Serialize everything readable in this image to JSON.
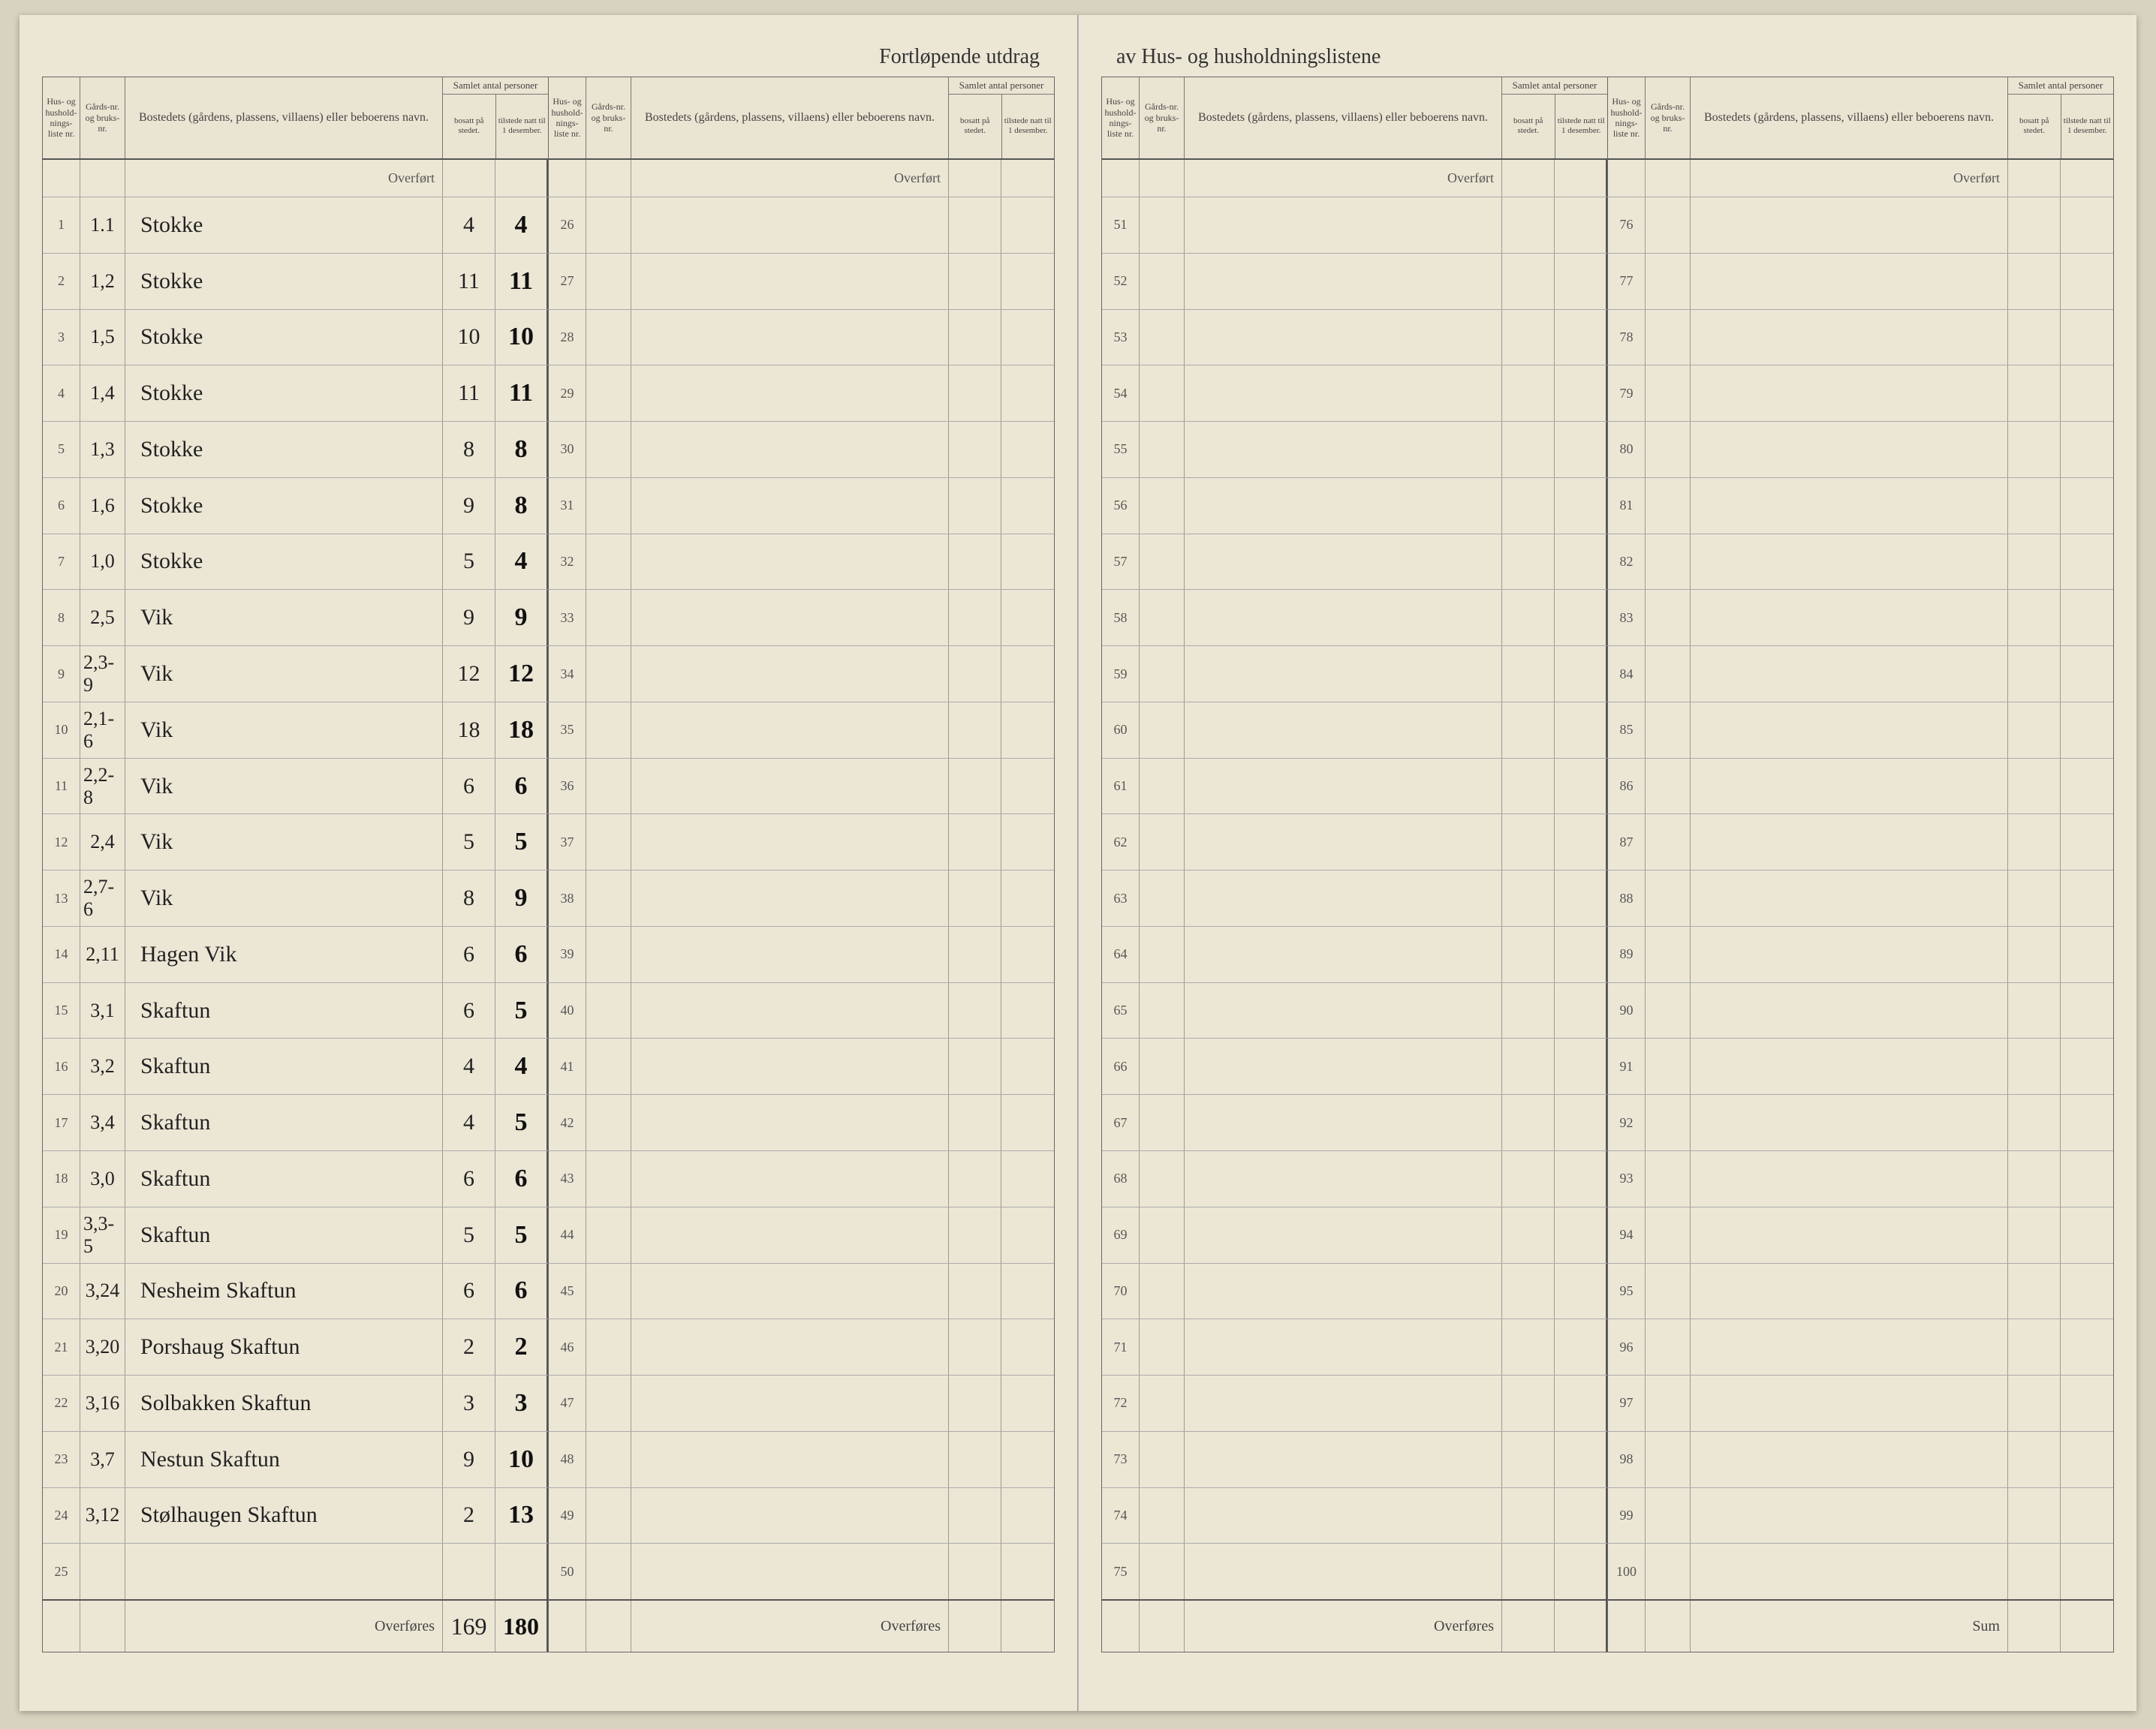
{
  "title_left": "Fortløpende utdrag",
  "title_right": "av Hus- og husholdningslistene",
  "headers": {
    "nr": "Hus- og hushold-nings-liste nr.",
    "gards": "Gårds-nr. og bruks-nr.",
    "bosted": "Bostedets (gårdens, plassens, villaens) eller beboerens navn.",
    "samlet": "Samlet antal personer",
    "bosatt": "bosatt på stedet.",
    "tilstede": "tilstede natt til 1 desember."
  },
  "labels": {
    "overfort": "Overført",
    "overfores": "Overføres",
    "sum": "Sum"
  },
  "panels": [
    {
      "overfort_label": "Overført",
      "rows": [
        {
          "nr": "1",
          "gards": "1.1",
          "bosted": "Stokke",
          "bosatt": "4",
          "tilstede": "4"
        },
        {
          "nr": "2",
          "gards": "1,2",
          "bosted": "Stokke",
          "bosatt": "11",
          "tilstede": "11"
        },
        {
          "nr": "3",
          "gards": "1,5",
          "bosted": "Stokke",
          "bosatt": "10",
          "tilstede": "10"
        },
        {
          "nr": "4",
          "gards": "1,4",
          "bosted": "Stokke",
          "bosatt": "11",
          "tilstede": "11"
        },
        {
          "nr": "5",
          "gards": "1,3",
          "bosted": "Stokke",
          "bosatt": "8",
          "tilstede": "8"
        },
        {
          "nr": "6",
          "gards": "1,6",
          "bosted": "Stokke",
          "bosatt": "9",
          "tilstede": "8"
        },
        {
          "nr": "7",
          "gards": "1,0",
          "bosted": "Stokke",
          "bosatt": "5",
          "tilstede": "4"
        },
        {
          "nr": "8",
          "gards": "2,5",
          "bosted": "Vik",
          "bosatt": "9",
          "tilstede": "9"
        },
        {
          "nr": "9",
          "gards": "2,3-9",
          "bosted": "Vik",
          "bosatt": "12",
          "tilstede": "12"
        },
        {
          "nr": "10",
          "gards": "2,1-6",
          "bosted": "Vik",
          "bosatt": "18",
          "tilstede": "18"
        },
        {
          "nr": "11",
          "gards": "2,2-8",
          "bosted": "Vik",
          "bosatt": "6",
          "tilstede": "6"
        },
        {
          "nr": "12",
          "gards": "2,4",
          "bosted": "Vik",
          "bosatt": "5",
          "tilstede": "5"
        },
        {
          "nr": "13",
          "gards": "2,7-6",
          "bosted": "Vik",
          "bosatt": "8",
          "tilstede": "9"
        },
        {
          "nr": "14",
          "gards": "2,11",
          "bosted": "Hagen Vik",
          "bosatt": "6",
          "tilstede": "6"
        },
        {
          "nr": "15",
          "gards": "3,1",
          "bosted": "Skaftun",
          "bosatt": "6",
          "tilstede": "5"
        },
        {
          "nr": "16",
          "gards": "3,2",
          "bosted": "Skaftun",
          "bosatt": "4",
          "tilstede": "4"
        },
        {
          "nr": "17",
          "gards": "3,4",
          "bosted": "Skaftun",
          "bosatt": "4",
          "tilstede": "5"
        },
        {
          "nr": "18",
          "gards": "3,0",
          "bosted": "Skaftun",
          "bosatt": "6",
          "tilstede": "6"
        },
        {
          "nr": "19",
          "gards": "3,3-5",
          "bosted": "Skaftun",
          "bosatt": "5",
          "tilstede": "5"
        },
        {
          "nr": "20",
          "gards": "3,24",
          "bosted": "Nesheim Skaftun",
          "bosatt": "6",
          "tilstede": "6"
        },
        {
          "nr": "21",
          "gards": "3,20",
          "bosted": "Porshaug Skaftun",
          "bosatt": "2",
          "tilstede": "2"
        },
        {
          "nr": "22",
          "gards": "3,16",
          "bosted": "Solbakken Skaftun",
          "bosatt": "3",
          "tilstede": "3"
        },
        {
          "nr": "23",
          "gards": "3,7",
          "bosted": "Nestun Skaftun",
          "bosatt": "9",
          "tilstede": "10"
        },
        {
          "nr": "24",
          "gards": "3,12",
          "bosted": "Stølhaugen Skaftun",
          "bosatt": "2",
          "tilstede": "13"
        },
        {
          "nr": "25",
          "gards": "",
          "bosted": "",
          "bosatt": "",
          "tilstede": ""
        }
      ],
      "footer_label": "Overføres",
      "footer_bosatt": "169",
      "footer_tilstede": "180"
    },
    {
      "rows": [
        {
          "nr": "26"
        },
        {
          "nr": "27"
        },
        {
          "nr": "28"
        },
        {
          "nr": "29"
        },
        {
          "nr": "30"
        },
        {
          "nr": "31"
        },
        {
          "nr": "32"
        },
        {
          "nr": "33"
        },
        {
          "nr": "34"
        },
        {
          "nr": "35"
        },
        {
          "nr": "36"
        },
        {
          "nr": "37"
        },
        {
          "nr": "38"
        },
        {
          "nr": "39"
        },
        {
          "nr": "40"
        },
        {
          "nr": "41"
        },
        {
          "nr": "42"
        },
        {
          "nr": "43"
        },
        {
          "nr": "44"
        },
        {
          "nr": "45"
        },
        {
          "nr": "46"
        },
        {
          "nr": "47"
        },
        {
          "nr": "48"
        },
        {
          "nr": "49"
        },
        {
          "nr": "50"
        }
      ],
      "footer_label": "Overføres"
    },
    {
      "rows": [
        {
          "nr": "51"
        },
        {
          "nr": "52"
        },
        {
          "nr": "53"
        },
        {
          "nr": "54"
        },
        {
          "nr": "55"
        },
        {
          "nr": "56"
        },
        {
          "nr": "57"
        },
        {
          "nr": "58"
        },
        {
          "nr": "59"
        },
        {
          "nr": "60"
        },
        {
          "nr": "61"
        },
        {
          "nr": "62"
        },
        {
          "nr": "63"
        },
        {
          "nr": "64"
        },
        {
          "nr": "65"
        },
        {
          "nr": "66"
        },
        {
          "nr": "67"
        },
        {
          "nr": "68"
        },
        {
          "nr": "69"
        },
        {
          "nr": "70"
        },
        {
          "nr": "71"
        },
        {
          "nr": "72"
        },
        {
          "nr": "73"
        },
        {
          "nr": "74"
        },
        {
          "nr": "75"
        }
      ],
      "footer_label": "Overføres"
    },
    {
      "rows": [
        {
          "nr": "76"
        },
        {
          "nr": "77"
        },
        {
          "nr": "78"
        },
        {
          "nr": "79"
        },
        {
          "nr": "80"
        },
        {
          "nr": "81"
        },
        {
          "nr": "82"
        },
        {
          "nr": "83"
        },
        {
          "nr": "84"
        },
        {
          "nr": "85"
        },
        {
          "nr": "86"
        },
        {
          "nr": "87"
        },
        {
          "nr": "88"
        },
        {
          "nr": "89"
        },
        {
          "nr": "90"
        },
        {
          "nr": "91"
        },
        {
          "nr": "92"
        },
        {
          "nr": "93"
        },
        {
          "nr": "94"
        },
        {
          "nr": "95"
        },
        {
          "nr": "96"
        },
        {
          "nr": "97"
        },
        {
          "nr": "98"
        },
        {
          "nr": "99"
        },
        {
          "nr": "100"
        }
      ],
      "footer_label": "Sum"
    }
  ],
  "colors": {
    "paper": "#ece7d5",
    "ink": "#222222",
    "rule": "#666666",
    "handwriting": "#1a1a1a"
  }
}
